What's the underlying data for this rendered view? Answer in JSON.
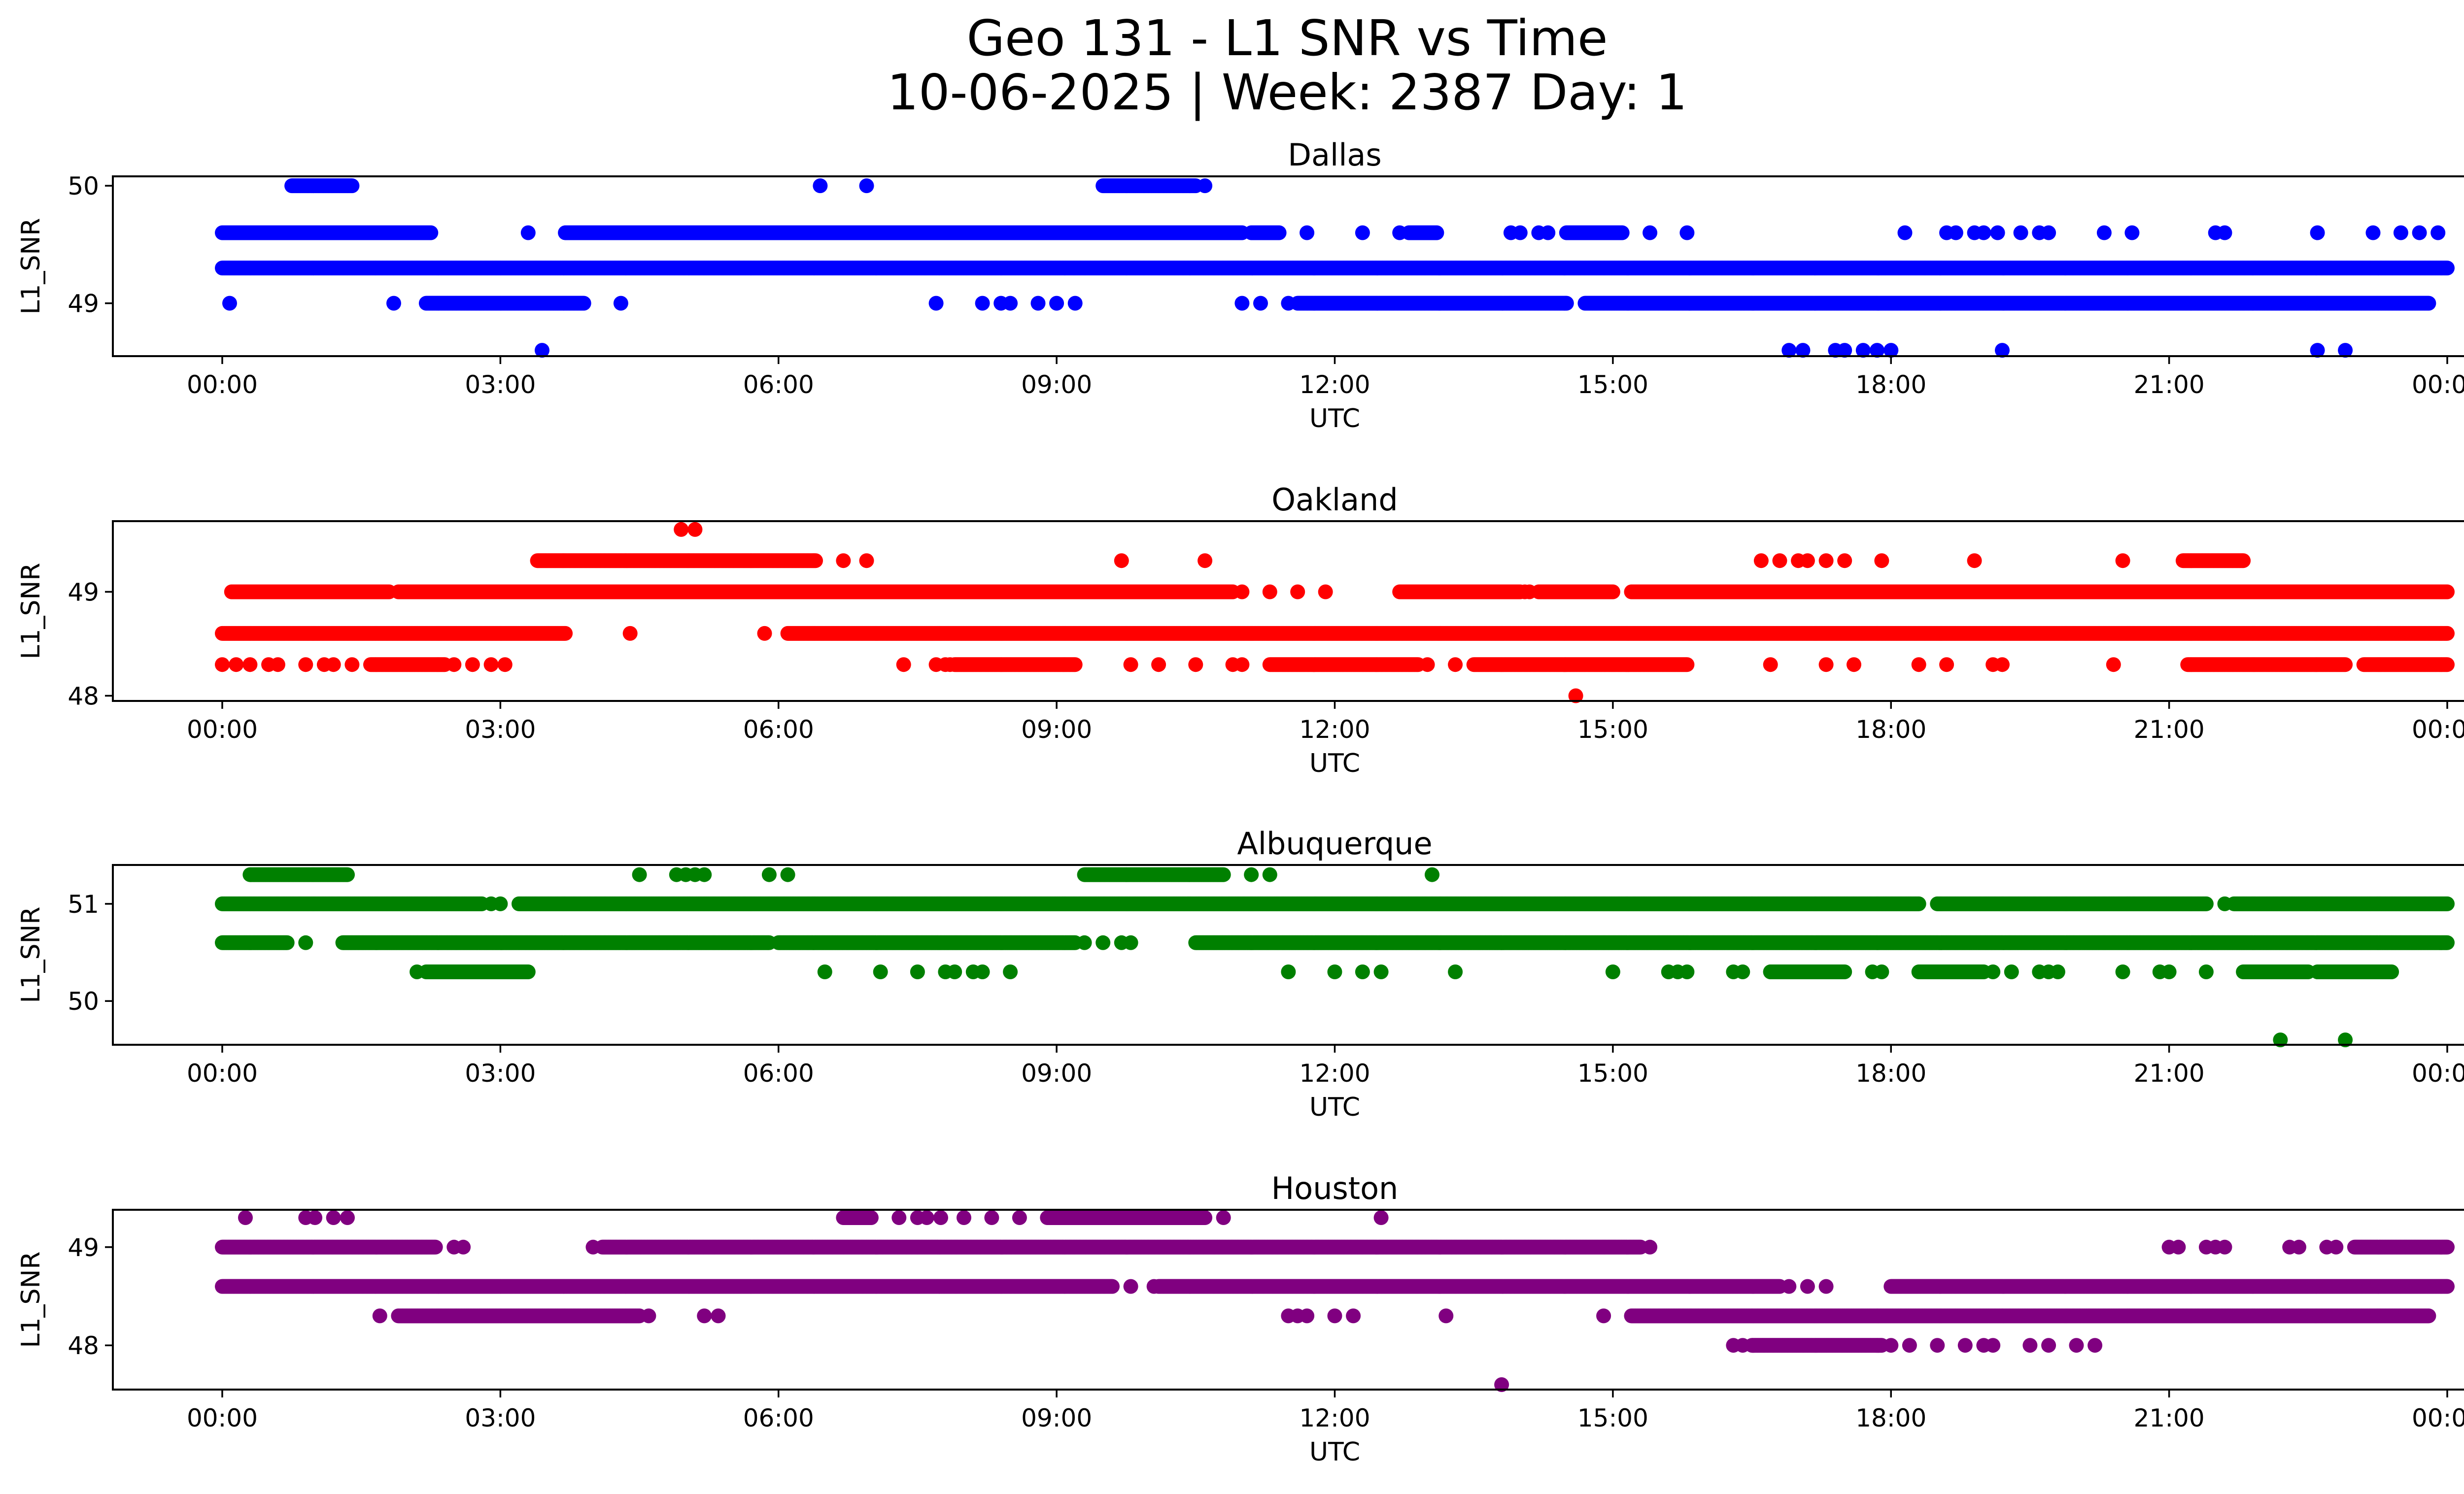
{
  "title_line1": "Geo 131 - L1 SNR vs Time",
  "title_line2": "10-06-2025 | Week: 2387 Day: 1",
  "chart_data": [
    {
      "type": "scatter",
      "title": "Dallas",
      "xlabel": "UTC",
      "ylabel": "L1_SNR",
      "color": "#0000ff",
      "x_tick_labels": [
        "00:00",
        "03:00",
        "06:00",
        "09:00",
        "12:00",
        "15:00",
        "18:00",
        "21:00",
        "00:00"
      ],
      "xlim_hours": [
        -1.18,
        25.18
      ],
      "ylim": [
        48.55,
        50.08
      ],
      "yticks": [
        49,
        50
      ],
      "series": [
        {
          "y": 49.3,
          "ranges": [
            [
              0.0,
              24.0
            ]
          ],
          "points": []
        },
        {
          "y": 49.6,
          "ranges": [
            [
              0.0,
              2.25
            ],
            [
              3.7,
              11.0
            ],
            [
              11.1,
              11.4
            ],
            [
              12.8,
              13.1
            ],
            [
              14.5,
              15.1
            ]
          ],
          "points": [
            3.3,
            11.7,
            12.3,
            12.7,
            13.9,
            14.0,
            14.2,
            14.3,
            15.4,
            15.8,
            18.15,
            18.6,
            18.7,
            18.9,
            19.0,
            19.15,
            19.4,
            19.6,
            19.7,
            20.3,
            20.6,
            21.5,
            21.6,
            22.6,
            23.2,
            23.5,
            23.7,
            23.9
          ]
        },
        {
          "y": 49.0,
          "ranges": [
            [
              2.2,
              3.9
            ],
            [
              11.6,
              14.5
            ],
            [
              14.7,
              23.8
            ]
          ],
          "points": [
            0.08,
            1.85,
            4.3,
            7.7,
            8.2,
            8.4,
            8.5,
            8.8,
            9.0,
            9.2,
            11.0,
            11.2,
            11.5
          ]
        },
        {
          "y": 50.0,
          "ranges": [
            [
              0.75,
              1.4
            ],
            [
              9.5,
              10.5
            ]
          ],
          "points": [
            6.45,
            6.95,
            10.6
          ]
        },
        {
          "y": 48.6,
          "ranges": [],
          "points": [
            3.45,
            16.9,
            17.05,
            17.4,
            17.5,
            17.7,
            17.85,
            18.0,
            19.2,
            22.6,
            22.9
          ]
        }
      ]
    },
    {
      "type": "scatter",
      "title": "Oakland",
      "xlabel": "UTC",
      "ylabel": "L1_SNR",
      "color": "#ff0000",
      "x_tick_labels": [
        "00:00",
        "03:00",
        "06:00",
        "09:00",
        "12:00",
        "15:00",
        "18:00",
        "21:00",
        "00:00"
      ],
      "xlim_hours": [
        -1.18,
        25.18
      ],
      "ylim": [
        47.95,
        49.68
      ],
      "yticks": [
        48,
        49
      ],
      "series": [
        {
          "y": 48.6,
          "ranges": [
            [
              0.0,
              3.7
            ],
            [
              6.1,
              24.0
            ]
          ],
          "points": [
            4.4,
            5.85
          ]
        },
        {
          "y": 49.0,
          "ranges": [
            [
              0.1,
              1.8
            ],
            [
              1.9,
              8.0
            ],
            [
              8.0,
              10.9
            ],
            [
              12.7,
              14.0
            ],
            [
              14.2,
              15.0
            ],
            [
              15.2,
              24.0
            ]
          ],
          "points": [
            11.0,
            11.3,
            11.6,
            11.9,
            14.05,
            14.1
          ]
        },
        {
          "y": 48.3,
          "ranges": [
            [
              1.6,
              2.4
            ],
            [
              7.9,
              9.2
            ],
            [
              11.3,
              12.9
            ],
            [
              13.5,
              15.8
            ],
            [
              21.2,
              22.9
            ],
            [
              23.1,
              24.0
            ]
          ],
          "points": [
            0.0,
            0.15,
            0.3,
            0.5,
            0.6,
            0.9,
            1.1,
            1.2,
            1.4,
            2.5,
            2.7,
            2.9,
            3.05,
            7.35,
            7.7,
            7.8,
            7.85,
            9.8,
            10.1,
            10.5,
            10.9,
            11.0,
            13.0,
            13.3,
            16.7,
            17.3,
            17.6,
            18.3,
            18.6,
            19.1,
            19.2,
            20.4
          ]
        },
        {
          "y": 49.3,
          "ranges": [
            [
              3.4,
              6.4
            ],
            [
              21.15,
              21.8
            ]
          ],
          "points": [
            6.7,
            6.95,
            9.7,
            10.6,
            16.6,
            16.8,
            17.0,
            17.1,
            17.3,
            17.5,
            17.9,
            18.9,
            20.5
          ]
        },
        {
          "y": 49.6,
          "ranges": [],
          "points": [
            4.95,
            5.1
          ]
        },
        {
          "y": 48.0,
          "ranges": [],
          "points": [
            14.6
          ]
        }
      ]
    },
    {
      "type": "scatter",
      "title": "Albuquerque",
      "xlabel": "UTC",
      "ylabel": "L1_SNR",
      "color": "#008000",
      "x_tick_labels": [
        "00:00",
        "03:00",
        "06:00",
        "09:00",
        "12:00",
        "15:00",
        "18:00",
        "21:00",
        "00:00"
      ],
      "xlim_hours": [
        -1.18,
        25.18
      ],
      "ylim": [
        49.55,
        51.4
      ],
      "yticks": [
        50,
        51
      ],
      "series": [
        {
          "y": 51.0,
          "ranges": [
            [
              0.0,
              2.8
            ],
            [
              3.2,
              18.3
            ],
            [
              18.5,
              21.4
            ],
            [
              21.7,
              24.0
            ]
          ],
          "points": [
            2.9,
            3.0,
            21.6
          ]
        },
        {
          "y": 50.6,
          "ranges": [
            [
              0.0,
              0.7
            ],
            [
              1.3,
              5.9
            ],
            [
              6.0,
              9.2
            ],
            [
              10.5,
              24.0
            ]
          ],
          "points": [
            0.9,
            9.3,
            9.5,
            9.7,
            9.8
          ]
        },
        {
          "y": 51.3,
          "ranges": [
            [
              0.3,
              1.35
            ],
            [
              9.3,
              10.8
            ]
          ],
          "points": [
            4.5,
            4.9,
            5.0,
            5.1,
            5.2,
            5.9,
            6.1,
            11.1,
            11.3,
            13.05
          ]
        },
        {
          "y": 50.3,
          "ranges": [
            [
              2.2,
              3.3
            ],
            [
              16.7,
              17.5
            ],
            [
              18.3,
              19.0
            ],
            [
              21.8,
              22.5
            ],
            [
              22.6,
              23.4
            ]
          ],
          "points": [
            2.1,
            2.4,
            2.6,
            2.8,
            2.95,
            6.5,
            7.1,
            7.5,
            7.8,
            7.9,
            8.1,
            8.2,
            8.5,
            11.5,
            12.0,
            12.3,
            12.5,
            13.3,
            15.0,
            15.6,
            15.7,
            15.8,
            16.3,
            16.4,
            16.7,
            17.8,
            17.9,
            19.1,
            19.3,
            19.6,
            19.7,
            19.8,
            20.5,
            20.9,
            21.0,
            21.4
          ]
        },
        {
          "y": 49.6,
          "ranges": [],
          "points": [
            22.2,
            22.9
          ]
        }
      ]
    },
    {
      "type": "scatter",
      "title": "Houston",
      "xlabel": "UTC",
      "ylabel": "L1_SNR",
      "color": "#800080",
      "x_tick_labels": [
        "00:00",
        "03:00",
        "06:00",
        "09:00",
        "12:00",
        "15:00",
        "18:00",
        "21:00",
        "00:00"
      ],
      "xlim_hours": [
        -1.18,
        25.18
      ],
      "ylim": [
        47.55,
        49.38
      ],
      "yticks": [
        48,
        49
      ],
      "series": [
        {
          "y": 48.6,
          "ranges": [
            [
              0.0,
              9.6
            ],
            [
              10.1,
              16.8
            ],
            [
              18.0,
              24.0
            ]
          ],
          "points": [
            9.8,
            10.05,
            16.9,
            17.1,
            17.3
          ]
        },
        {
          "y": 49.0,
          "ranges": [
            [
              0.0,
              2.3
            ],
            [
              4.1,
              15.3
            ],
            [
              23.0,
              24.0
            ]
          ],
          "points": [
            2.5,
            2.6,
            4.0,
            15.4,
            21.0,
            21.1,
            21.4,
            21.5,
            21.6,
            22.3,
            22.4,
            22.7,
            22.8
          ]
        },
        {
          "y": 48.3,
          "ranges": [
            [
              1.9,
              4.5
            ],
            [
              15.2,
              23.8
            ]
          ],
          "points": [
            1.7,
            4.6,
            5.2,
            5.35,
            11.5,
            11.6,
            11.7,
            12.0,
            12.2,
            13.2,
            14.9
          ]
        },
        {
          "y": 49.3,
          "ranges": [
            [
              6.7,
              7.0
            ],
            [
              8.9,
              10.6
            ]
          ],
          "points": [
            0.25,
            0.9,
            1.0,
            1.2,
            1.35,
            7.3,
            7.5,
            7.6,
            7.75,
            8.0,
            8.3,
            8.6,
            10.8,
            12.5
          ]
        },
        {
          "y": 48.0,
          "ranges": [
            [
              16.5,
              17.9
            ]
          ],
          "points": [
            16.3,
            16.4,
            18.0,
            18.2,
            18.5,
            18.8,
            19.0,
            19.1,
            19.5,
            19.7,
            20.0,
            20.2
          ]
        },
        {
          "y": 47.6,
          "ranges": [],
          "points": [
            13.8
          ]
        }
      ]
    }
  ]
}
